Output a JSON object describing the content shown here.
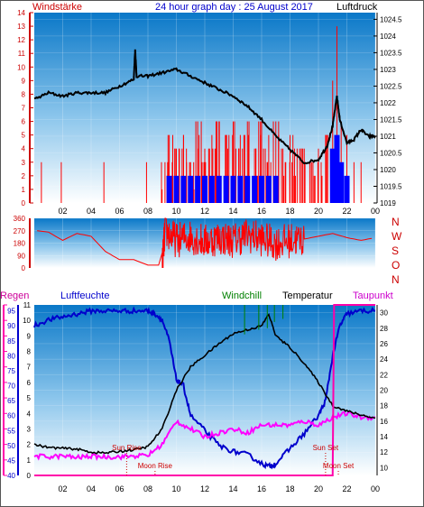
{
  "header": {
    "left_label": "Windstärke",
    "title": "24 hour graph day : 25 August 2017",
    "right_label": "Luftdruck"
  },
  "bottom_header": {
    "regen": "Regen",
    "luftfeuchte": "Luftfeuchte",
    "windchill": "Windchill",
    "temperatur": "Temperatur",
    "taupunkt": "Taupunkt"
  },
  "colors": {
    "panel_top": "#0a78c8",
    "panel_bottom": "#ffffff",
    "pressure": "#000000",
    "wind_speed": "#ff0000",
    "wind_dir": "#ff0000",
    "wind_blue": "#0000ff",
    "temperature": "#000000",
    "humidity": "#0000cc",
    "dewpoint": "#ff00ff",
    "windchill": "#008000",
    "rain": "#ff00aa",
    "sun_marker": "#cc0000",
    "moon_marker": "#cc0000"
  },
  "chart_data": [
    {
      "type": "line",
      "id": "wind_pressure",
      "title": "24 hour graph day : 25 August 2017",
      "x_ticks": [
        "02",
        "04",
        "06",
        "08",
        "10",
        "12",
        "14",
        "16",
        "18",
        "20",
        "22",
        "00"
      ],
      "left_axis": {
        "label": "Windstärke",
        "ticks": [
          0,
          1,
          2,
          3,
          4,
          5,
          6,
          7,
          8,
          9,
          10,
          11,
          12,
          13,
          14
        ],
        "ylim": [
          0,
          14
        ]
      },
      "right_axis": {
        "label": "Luftdruck",
        "ticks": [
          "1019",
          "1019.5",
          "1020",
          "1020.5",
          "1021",
          "1021.5",
          "1022",
          "1022.5",
          "1023",
          "1023.5",
          "1024",
          "1024.5"
        ],
        "ylim": [
          1019,
          1024.7
        ]
      },
      "series": [
        {
          "name": "Luftdruck",
          "x": [
            0,
            1,
            2,
            3,
            4,
            5,
            6,
            7,
            7.1,
            7.2,
            8,
            9,
            10,
            11,
            12,
            13,
            14,
            15,
            16,
            17,
            18,
            19,
            20,
            20.6,
            21,
            21.3,
            21.5,
            22,
            22.5,
            23,
            23.5,
            24
          ],
          "y": [
            1022.1,
            1022.3,
            1022.2,
            1022.3,
            1022.3,
            1022.3,
            1022.5,
            1022.7,
            1023.6,
            1022.8,
            1022.8,
            1022.9,
            1023.0,
            1022.8,
            1022.6,
            1022.4,
            1022.2,
            1021.9,
            1021.5,
            1021.0,
            1020.6,
            1020.2,
            1020.3,
            1020.7,
            1021.3,
            1022.2,
            1021.5,
            1020.8,
            1020.9,
            1021.2,
            1021.0,
            1021.0
          ]
        }
      ],
      "wind_gust_pairs": [
        [
          0.5,
          3
        ],
        [
          1.9,
          3
        ],
        [
          4.9,
          3
        ],
        [
          7.9,
          3
        ],
        [
          9.2,
          3
        ],
        [
          9.5,
          5
        ],
        [
          10,
          4
        ],
        [
          10.5,
          5
        ],
        [
          11,
          3
        ],
        [
          11.5,
          6
        ],
        [
          12,
          4
        ],
        [
          12.5,
          5
        ],
        [
          13,
          6
        ],
        [
          13.5,
          5
        ],
        [
          14,
          6
        ],
        [
          14.5,
          5
        ],
        [
          15,
          6
        ],
        [
          15.5,
          4
        ],
        [
          16,
          6
        ],
        [
          16.5,
          5
        ],
        [
          17,
          6
        ],
        [
          17.5,
          4
        ],
        [
          18,
          5
        ],
        [
          18.5,
          4
        ],
        [
          19,
          4
        ],
        [
          19.5,
          3
        ],
        [
          20,
          4
        ],
        [
          20.5,
          5
        ],
        [
          21,
          9
        ],
        [
          21.3,
          13
        ],
        [
          21.6,
          6
        ],
        [
          22,
          5
        ],
        [
          22.5,
          3
        ],
        [
          23,
          3
        ]
      ],
      "wind_mean_pairs": [
        [
          9.5,
          2
        ],
        [
          10,
          2
        ],
        [
          10.5,
          2
        ],
        [
          11,
          2
        ],
        [
          11.5,
          2
        ],
        [
          12,
          2
        ],
        [
          12.5,
          2
        ],
        [
          13,
          2
        ],
        [
          13.5,
          2
        ],
        [
          14,
          2
        ],
        [
          14.5,
          2
        ],
        [
          15,
          2
        ],
        [
          15.5,
          2
        ],
        [
          16,
          2
        ],
        [
          16.5,
          2
        ],
        [
          17,
          2
        ],
        [
          21,
          4
        ],
        [
          21.3,
          5
        ],
        [
          21.6,
          3
        ],
        [
          22,
          2
        ]
      ]
    },
    {
      "type": "line",
      "id": "wind_direction",
      "left_axis": {
        "ticks": [
          0,
          90,
          180,
          270,
          360
        ],
        "ylim": [
          0,
          360
        ]
      },
      "right_labels": [
        "N",
        "W",
        "S",
        "O",
        "N"
      ],
      "series": [
        {
          "name": "Windrichtung",
          "x": [
            0.2,
            1,
            2,
            3,
            4,
            5,
            5.5,
            6,
            7,
            8,
            9,
            9.2,
            10,
            11,
            12,
            13,
            14,
            15,
            16,
            17,
            18,
            19,
            20,
            21,
            22,
            23,
            24
          ],
          "y": [
            270,
            260,
            200,
            250,
            230,
            120,
            90,
            60,
            60,
            20,
            20,
            270,
            200,
            230,
            190,
            220,
            200,
            240,
            210,
            180,
            200,
            210,
            230,
            250,
            220,
            200,
            220
          ]
        }
      ]
    },
    {
      "type": "line",
      "id": "temp_humidity",
      "left_axis_regen": {
        "label": "Regen",
        "ticks": [
          0,
          1,
          2,
          3,
          4,
          5,
          6,
          7,
          8,
          9,
          10,
          11
        ],
        "ylim": [
          0,
          11
        ]
      },
      "left_axis_feuchte": {
        "label": "Luftfeuchte",
        "ticks": [
          40,
          45,
          50,
          55,
          60,
          65,
          70,
          75,
          80,
          85,
          90,
          95
        ],
        "ylim": [
          40,
          97
        ]
      },
      "right_axis": {
        "label": "Temperatur",
        "ticks": [
          10,
          12,
          14,
          16,
          18,
          20,
          22,
          24,
          26,
          28,
          30
        ],
        "ylim": [
          9,
          31
        ]
      },
      "x_ticks": [
        "02",
        "04",
        "06",
        "08",
        "10",
        "12",
        "14",
        "16",
        "18",
        "20",
        "22",
        "00"
      ],
      "series": [
        {
          "name": "Temperatur",
          "x": [
            0,
            1,
            2,
            3,
            4,
            5,
            6,
            7,
            8,
            9,
            10,
            11,
            12,
            13,
            14,
            15,
            16,
            16.5,
            17,
            18,
            19,
            20,
            21,
            22,
            23,
            24
          ],
          "y": [
            13,
            12.6,
            12.5,
            12.4,
            12.0,
            11.9,
            12.1,
            12.3,
            12.7,
            15,
            20,
            23,
            24.5,
            26,
            27.3,
            27.8,
            28.3,
            29.8,
            27.0,
            25.5,
            23.5,
            21.0,
            18.0,
            17.3,
            16.8,
            16.4
          ]
        },
        {
          "name": "Luftfeuchte",
          "x": [
            0,
            1,
            2,
            3,
            4,
            5,
            6,
            7,
            8,
            8.5,
            9,
            9.5,
            10,
            10.5,
            11,
            12,
            13,
            14,
            15,
            16,
            16.5,
            17,
            18,
            19,
            20,
            20.5,
            21,
            21.5,
            22,
            23,
            24
          ],
          "y": [
            90,
            92,
            93,
            94,
            95,
            95,
            95,
            95,
            95,
            94,
            92,
            85,
            72,
            70,
            60,
            55,
            50,
            48,
            47,
            44,
            43,
            44,
            49,
            54,
            60,
            65,
            80,
            90,
            94,
            95,
            95
          ]
        },
        {
          "name": "Taupunkt",
          "x": [
            0,
            1,
            2,
            3,
            4,
            5,
            6,
            7,
            8,
            9,
            10,
            11,
            12,
            13,
            14,
            15,
            16,
            17,
            18,
            19,
            20,
            21,
            22,
            23,
            24
          ],
          "y": [
            11.5,
            11.4,
            11.5,
            11.3,
            11.5,
            11.4,
            11.4,
            11.5,
            11.6,
            13.0,
            16.0,
            15.0,
            14.0,
            14.5,
            15.0,
            14.5,
            15.5,
            15.5,
            15.5,
            16.0,
            15.5,
            16.5,
            17.0,
            16.5,
            16.5
          ]
        },
        {
          "name": "Windchill",
          "x": [
            14.8,
            14.9,
            15.8,
            15.9,
            16.4,
            16.5,
            16.9,
            17.0,
            17.5,
            17.6
          ],
          "y": [
            27.2,
            31,
            27.8,
            31,
            28.0,
            31,
            28.8,
            31,
            29.2,
            31
          ]
        },
        {
          "name": "Regen",
          "x": [
            0,
            21,
            21.1,
            24
          ],
          "y": [
            0,
            0,
            11,
            11
          ]
        }
      ],
      "annotations": [
        {
          "text": "Sun Rise",
          "x": 6.5
        },
        {
          "text": "Moon Rise",
          "x": 8.5
        },
        {
          "text": "Sun Set",
          "x": 20.5
        },
        {
          "text": "Moon Set",
          "x": 21.4
        }
      ]
    }
  ]
}
